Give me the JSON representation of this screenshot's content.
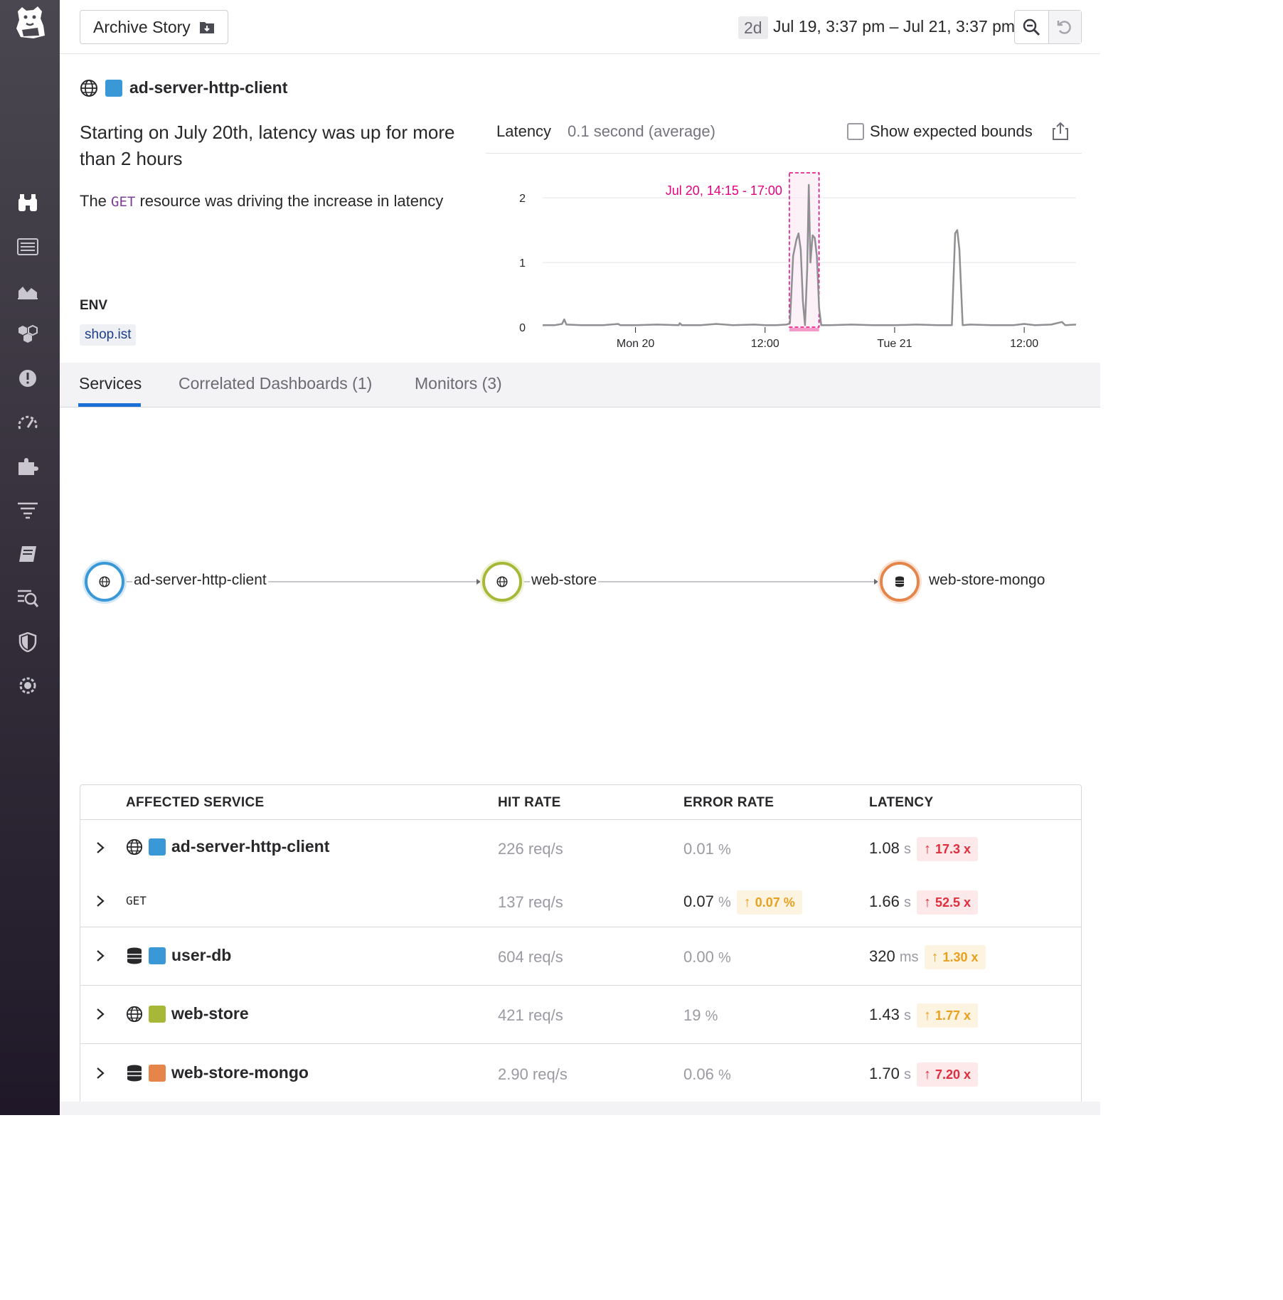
{
  "topbar": {
    "archive_label": "Archive Story",
    "range_badge": "2d",
    "range_text": "Jul 19, 3:37 pm – Jul 21, 3:37 pm"
  },
  "header": {
    "service_name": "ad-server-http-client",
    "service_color": "#3a98d6",
    "headline": "Starting on July 20th, latency was up for more than 2 hours",
    "sub_before": "The ",
    "sub_resource": "GET",
    "sub_after": " resource was driving the increase in latency",
    "env_label": "ENV",
    "env_value": "shop.ist"
  },
  "chart_panel": {
    "metric_label": "Latency",
    "metric_value": "0.1 second (average)",
    "bounds_label": "Show expected bounds"
  },
  "chart_data": {
    "type": "line",
    "title": "",
    "xlabel": "",
    "ylabel": "",
    "ylim": [
      0,
      2.2
    ],
    "yticks": [
      0,
      1,
      2
    ],
    "xticks": [
      "Mon 20",
      "12:00",
      "Tue 21",
      "12:00"
    ],
    "x_range_hours": [
      -8.6,
      40.8
    ],
    "highlight": {
      "label": "Jul 20, 14:15 - 17:00",
      "start_hour": 14.25,
      "end_hour": 17.0,
      "color": "#e6007e"
    },
    "series": [
      {
        "color": "#8f8f94",
        "points": [
          [
            -8.6,
            0.03
          ],
          [
            -7.5,
            0.03
          ],
          [
            -6.8,
            0.05
          ],
          [
            -6.6,
            0.12
          ],
          [
            -6.4,
            0.04
          ],
          [
            -5,
            0.03
          ],
          [
            -3,
            0.03
          ],
          [
            -1.6,
            0.05
          ],
          [
            -1.4,
            0.03
          ],
          [
            0,
            0.03
          ],
          [
            2,
            0.04
          ],
          [
            4,
            0.03
          ],
          [
            4.1,
            0.06
          ],
          [
            4.3,
            0.03
          ],
          [
            6,
            0.03
          ],
          [
            7.5,
            0.05
          ],
          [
            9,
            0.03
          ],
          [
            11,
            0.04
          ],
          [
            12,
            0.03
          ],
          [
            13,
            0.03
          ],
          [
            14,
            0.04
          ],
          [
            14.3,
            0.06
          ],
          [
            14.6,
            1.1
          ],
          [
            14.9,
            1.35
          ],
          [
            15.1,
            1.45
          ],
          [
            15.3,
            1.2
          ],
          [
            15.5,
            0.4
          ],
          [
            15.7,
            0.03
          ],
          [
            15.9,
            0.9
          ],
          [
            16.05,
            2.2
          ],
          [
            16.2,
            1.0
          ],
          [
            16.4,
            1.42
          ],
          [
            16.6,
            1.38
          ],
          [
            16.8,
            1.1
          ],
          [
            17.0,
            0.3
          ],
          [
            17.2,
            0.03
          ],
          [
            18,
            0.03
          ],
          [
            20,
            0.04
          ],
          [
            22,
            0.03
          ],
          [
            24,
            0.03
          ],
          [
            26,
            0.04
          ],
          [
            28,
            0.03
          ],
          [
            29.3,
            0.03
          ],
          [
            29.6,
            1.45
          ],
          [
            29.8,
            1.5
          ],
          [
            30.0,
            1.2
          ],
          [
            30.3,
            0.03
          ],
          [
            31,
            0.04
          ],
          [
            33,
            0.03
          ],
          [
            35,
            0.03
          ],
          [
            36,
            0.05
          ],
          [
            37,
            0.03
          ],
          [
            38.5,
            0.04
          ],
          [
            39.5,
            0.08
          ],
          [
            39.8,
            0.03
          ],
          [
            40.8,
            0.04
          ]
        ]
      }
    ]
  },
  "tabs": [
    {
      "label": "Services"
    },
    {
      "label": "Correlated Dashboards (1)"
    },
    {
      "label": "Monitors (3)"
    }
  ],
  "service_map": {
    "nodes": [
      {
        "label": "ad-server-http-client",
        "color": "#3a98d6",
        "icon": "globe-icon"
      },
      {
        "label": "web-store",
        "color": "#a7b838",
        "icon": "globe-icon"
      },
      {
        "label": "web-store-mongo",
        "color": "#e5854a",
        "icon": "database-icon"
      }
    ]
  },
  "table": {
    "headers": [
      "AFFECTED SERVICE",
      "HIT RATE",
      "ERROR RATE",
      "LATENCY"
    ],
    "rows": [
      {
        "name": "ad-server-http-client",
        "icon": "globe-icon",
        "color": "#3a98d6",
        "hit": "226 req/s",
        "err_val": "0.01",
        "err_unit": "%",
        "lat_val": "1.08",
        "lat_unit": "s",
        "lat_badge": "17.3 x",
        "lat_badge_color": "red"
      },
      {
        "name": "GET",
        "hit": "137 req/s",
        "err_val": "0.07",
        "err_unit": "%",
        "err_badge": "0.07 %",
        "lat_val": "1.66",
        "lat_unit": "s",
        "lat_badge": "52.5 x",
        "lat_badge_color": "red"
      },
      {
        "name": "user-db",
        "icon": "database-icon",
        "color": "#3a98d6",
        "hit": "604 req/s",
        "err_val": "0.00",
        "err_unit": "%",
        "lat_val": "320",
        "lat_unit": "ms",
        "lat_badge": "1.30 x",
        "lat_badge_color": "orange"
      },
      {
        "name": "web-store",
        "icon": "globe-icon",
        "color": "#a7b838",
        "hit": "421 req/s",
        "err_val": "19",
        "err_unit": "%",
        "lat_val": "1.43",
        "lat_unit": "s",
        "lat_badge": "1.77 x",
        "lat_badge_color": "orange"
      },
      {
        "name": "web-store-mongo",
        "icon": "database-icon",
        "color": "#e5854a",
        "hit": "2.90 req/s",
        "err_val": "0.06",
        "err_unit": "%",
        "lat_val": "1.70",
        "lat_unit": "s",
        "lat_badge": "7.20 x",
        "lat_badge_color": "red"
      }
    ]
  }
}
